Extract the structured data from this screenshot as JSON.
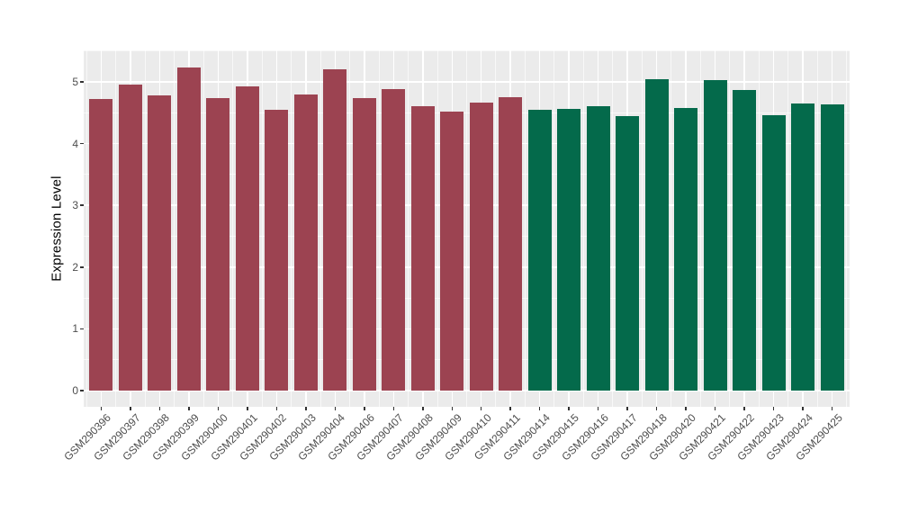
{
  "chart_data": {
    "type": "bar",
    "title": "",
    "xlabel": "",
    "ylabel": "Expression Level",
    "ylim": [
      0,
      5.5
    ],
    "yticks": [
      0,
      1,
      2,
      3,
      4,
      5
    ],
    "grid": "on",
    "legend": "none",
    "x_tick_rotation_deg": 45,
    "categories": [
      "GSM290396",
      "GSM290397",
      "GSM290398",
      "GSM290399",
      "GSM290400",
      "GSM290401",
      "GSM290402",
      "GSM290403",
      "GSM290404",
      "GSM290406",
      "GSM290407",
      "GSM290408",
      "GSM290409",
      "GSM290410",
      "GSM290411",
      "GSM290414",
      "GSM290415",
      "GSM290416",
      "GSM290417",
      "GSM290418",
      "GSM290420",
      "GSM290421",
      "GSM290422",
      "GSM290423",
      "GSM290424",
      "GSM290425"
    ],
    "values": [
      4.72,
      4.96,
      4.78,
      5.23,
      4.73,
      4.93,
      4.55,
      4.79,
      5.2,
      4.73,
      4.88,
      4.61,
      4.52,
      4.66,
      4.75,
      4.54,
      4.56,
      4.6,
      4.44,
      5.04,
      4.58,
      5.03,
      4.87,
      4.46,
      4.65,
      4.64
    ],
    "bar_groups": [
      "group1",
      "group1",
      "group1",
      "group1",
      "group1",
      "group1",
      "group1",
      "group1",
      "group1",
      "group1",
      "group1",
      "group1",
      "group1",
      "group1",
      "group1",
      "group2",
      "group2",
      "group2",
      "group2",
      "group2",
      "group2",
      "group2",
      "group2",
      "group2",
      "group2",
      "group2"
    ],
    "group_colors": {
      "group1": "#9C4351",
      "group2": "#046A4B"
    },
    "style": {
      "panel_bg": "#EBEBEB",
      "grid_major_color": "#FFFFFF",
      "grid_minor_color": "#FFFFFF",
      "tick_label_color": "#4D4D4D",
      "axis_title_color": "#000000",
      "tick_mark_color": "#333333",
      "outer_bg": "#FFFFFF"
    }
  }
}
